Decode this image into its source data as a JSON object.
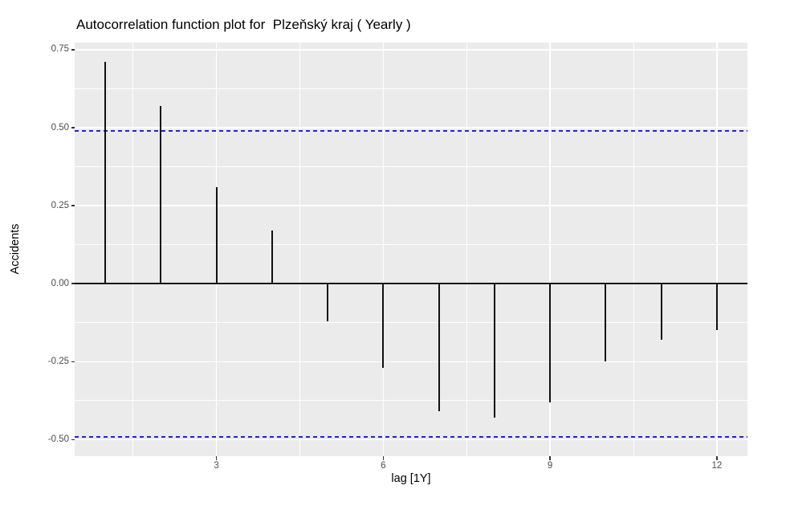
{
  "title": "Autocorrelation function plot for  Plzeňský kraj ( Yearly )",
  "colors": {
    "figure_background": "#FFFFFF",
    "panel_background": "#EBEBEB",
    "grid": "#FFFFFF",
    "spike": "#111111",
    "zero_line": "#111111",
    "ci_line": "#2222D6",
    "tick": "#333333",
    "axis_text": "#4D4D4D",
    "title_text": "#000000"
  },
  "chart_data": {
    "type": "bar",
    "subtype": "acf-stem",
    "title": "Autocorrelation function plot for  Plzeňský kraj ( Yearly )",
    "xlabel": "lag [1Y]",
    "ylabel": "Accidents",
    "x": [
      1,
      2,
      3,
      4,
      5,
      6,
      7,
      8,
      9,
      10,
      11,
      12
    ],
    "values": [
      0.71,
      0.57,
      0.31,
      0.17,
      -0.12,
      -0.27,
      -0.41,
      -0.43,
      -0.38,
      -0.25,
      -0.18,
      -0.15
    ],
    "ci_upper": 0.49,
    "ci_lower": -0.49,
    "ci_style": "dashed",
    "xlim": [
      0.45,
      12.55
    ],
    "ylim": [
      -0.553,
      0.773
    ],
    "x_ticks": {
      "values": [
        3,
        6,
        9,
        12
      ],
      "labels": [
        "3",
        "6",
        "9",
        "12"
      ]
    },
    "y_ticks": {
      "values": [
        0.75,
        0.5,
        0.25,
        0,
        -0.25,
        -0.5
      ],
      "labels": [
        "0.75",
        "0.50",
        "0.25",
        "0.00",
        "-0.25",
        "-0.50"
      ]
    },
    "x_minor_gridlines": [
      1.5,
      4.5,
      7.5,
      10.5
    ],
    "y_minor_gridlines": [
      0.625,
      0.375,
      0.125,
      -0.125,
      -0.375
    ],
    "grid": true,
    "legend": false
  }
}
